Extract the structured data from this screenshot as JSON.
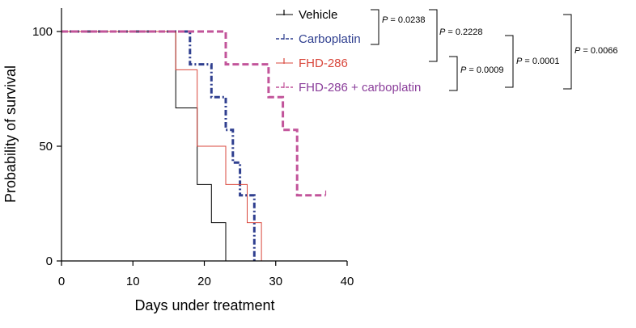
{
  "chart_data": {
    "type": "line",
    "subtype": "kaplan-meier",
    "xlabel": "Days under treatment",
    "ylabel": "Probability of survival",
    "xlim": [
      0,
      40
    ],
    "ylim": [
      0,
      100
    ],
    "xticks": [
      0,
      10,
      20,
      30,
      40
    ],
    "yticks": [
      0,
      50,
      100
    ],
    "grid": false,
    "legend_position": "top-right",
    "series": [
      {
        "name": "Vehicle",
        "color": "#000000",
        "style": "solid-thin",
        "points": [
          [
            0,
            100
          ],
          [
            16,
            100
          ],
          [
            16,
            66.7
          ],
          [
            19,
            66.7
          ],
          [
            19,
            33.3
          ],
          [
            21,
            33.3
          ],
          [
            21,
            16.7
          ],
          [
            23,
            16.7
          ],
          [
            23,
            0
          ]
        ]
      },
      {
        "name": "Carboplatin",
        "color": "#2f3f8f",
        "style": "dash-dot",
        "points": [
          [
            0,
            100
          ],
          [
            18,
            100
          ],
          [
            18,
            85.7
          ],
          [
            21,
            85.7
          ],
          [
            21,
            71.4
          ],
          [
            23,
            71.4
          ],
          [
            23,
            57.1
          ],
          [
            24,
            57.1
          ],
          [
            24,
            42.9
          ],
          [
            25,
            42.9
          ],
          [
            25,
            28.6
          ],
          [
            27,
            28.6
          ],
          [
            27,
            0
          ]
        ]
      },
      {
        "name": "FHD-286",
        "color": "#d9473c",
        "style": "solid-thin",
        "points": [
          [
            0,
            100
          ],
          [
            16,
            100
          ],
          [
            16,
            83.3
          ],
          [
            19,
            83.3
          ],
          [
            19,
            50
          ],
          [
            23,
            50
          ],
          [
            23,
            33.3
          ],
          [
            26,
            33.3
          ],
          [
            26,
            16.7
          ],
          [
            28,
            16.7
          ],
          [
            28,
            0
          ]
        ]
      },
      {
        "name": "FHD-286 + carboplatin",
        "color": "#c2549a",
        "style": "dashed-thick",
        "censored_end": true,
        "points": [
          [
            0,
            100
          ],
          [
            23,
            100
          ],
          [
            23,
            85.7
          ],
          [
            29,
            85.7
          ],
          [
            29,
            71.4
          ],
          [
            31,
            71.4
          ],
          [
            31,
            57.1
          ],
          [
            33,
            57.1
          ],
          [
            33,
            28.6
          ],
          [
            37,
            28.6
          ]
        ]
      }
    ],
    "comparisons": [
      {
        "pair": [
          "Vehicle",
          "Carboplatin"
        ],
        "label": "P = 0.0238"
      },
      {
        "pair": [
          "Vehicle",
          "FHD-286"
        ],
        "label": "P = 0.2228"
      },
      {
        "pair": [
          "FHD-286",
          "FHD-286 + carboplatin"
        ],
        "label": "P = 0.0009"
      },
      {
        "pair": [
          "Carboplatin",
          "FHD-286 + carboplatin"
        ],
        "label": "P = 0.0001"
      },
      {
        "pair": [
          "Vehicle",
          "FHD-286 + carboplatin"
        ],
        "label": "P = 0.0066"
      }
    ]
  }
}
